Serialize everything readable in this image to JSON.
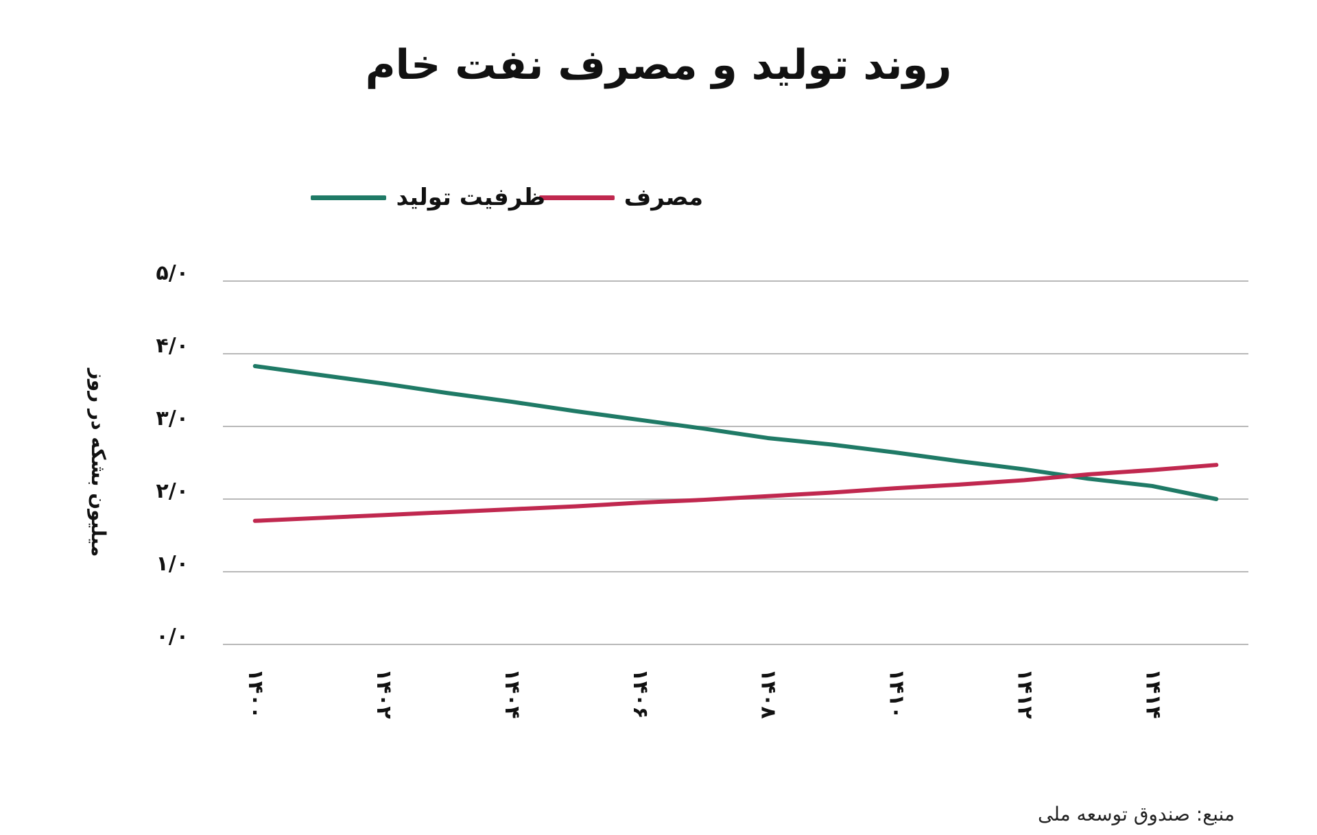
{
  "chart_data": {
    "type": "line",
    "title": "روند تولید و مصرف نفت خام",
    "ylabel": "میلیون بشکه در روز",
    "xlabel": "",
    "x": [
      1400,
      1401,
      1402,
      1403,
      1404,
      1405,
      1406,
      1407,
      1408,
      1409,
      1410,
      1411,
      1412,
      1413,
      1414,
      1415
    ],
    "x_tick_values": [
      1400,
      1402,
      1404,
      1406,
      1408,
      1410,
      1412,
      1414
    ],
    "x_tick_labels": [
      "۱۴۰۰",
      "۱۴۰۲",
      "۱۴۰۴",
      "۱۴۰۶",
      "۱۴۰۸",
      "۱۴۱۰",
      "۱۴۱۲",
      "۱۴۱۴"
    ],
    "y_tick_values": [
      0,
      1,
      2,
      3,
      4,
      5
    ],
    "y_tick_labels": [
      "۰/۰",
      "۱/۰",
      "۲/۰",
      "۳/۰",
      "۴/۰",
      "۵/۰"
    ],
    "ylim": [
      0,
      5
    ],
    "xlim": [
      1399.5,
      1415.5
    ],
    "grid": true,
    "legend_position": "top-center",
    "series": [
      {
        "name": "ظرفیت تولید",
        "color": "#1f7a66",
        "values": [
          3.83,
          3.71,
          3.59,
          3.46,
          3.34,
          3.21,
          3.09,
          2.97,
          2.84,
          2.75,
          2.64,
          2.52,
          2.41,
          2.28,
          2.18,
          2.0
        ]
      },
      {
        "name": "مصرف",
        "color": "#c0284f",
        "values": [
          1.7,
          1.74,
          1.78,
          1.82,
          1.86,
          1.9,
          1.95,
          1.99,
          2.04,
          2.09,
          2.15,
          2.2,
          2.26,
          2.34,
          2.4,
          2.47
        ]
      }
    ]
  },
  "legend": {
    "production_label": "ظرفیت تولید",
    "consumption_label": "مصرف"
  },
  "source": "منبع: صندوق توسعه ملی",
  "colors": {
    "grid": "#b8b8b8",
    "text": "#111111"
  }
}
